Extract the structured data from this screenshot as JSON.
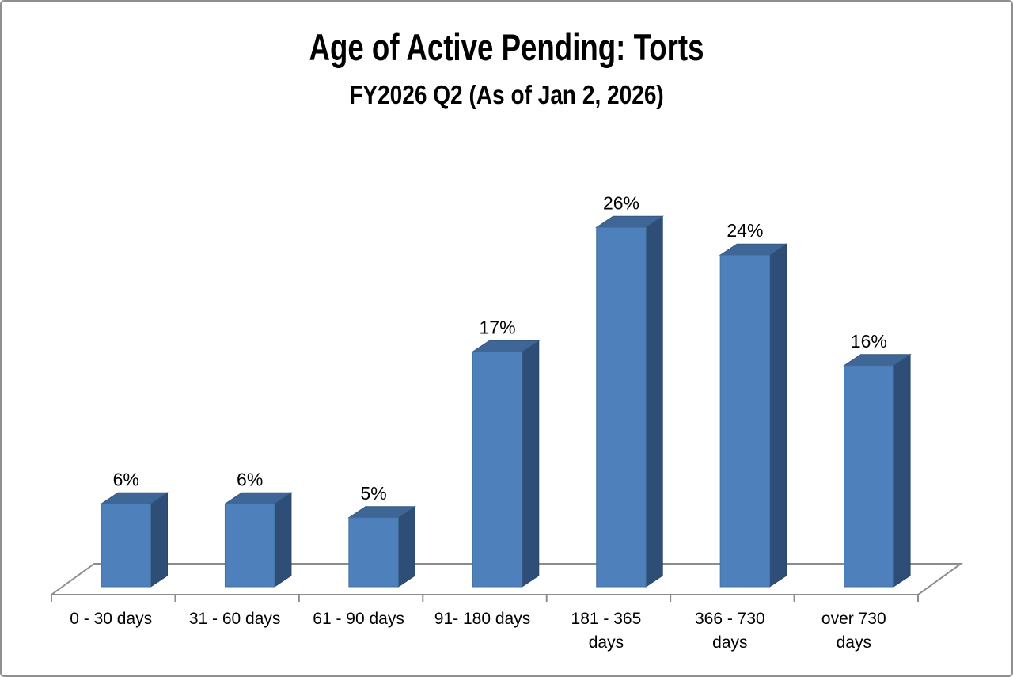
{
  "frame": {
    "title": "Age of Active Pending: Torts",
    "subtitle": "FY2026 Q2 (As of Jan 2, 2026)"
  },
  "chart_data": {
    "type": "bar",
    "effect": "3d-column",
    "title": "Age of Active Pending: Torts",
    "subtitle": "FY2026 Q2 (As of Jan 2, 2026)",
    "categories": [
      "0 - 30 days",
      "31 - 60 days",
      "61 - 90 days",
      "91- 180 days",
      "181 - 365 days",
      "366 - 730 days",
      "over 730 days"
    ],
    "category_label_lines": [
      [
        "0 - 30 days"
      ],
      [
        "31 - 60 days"
      ],
      [
        "61 - 90 days"
      ],
      [
        "91- 180 days"
      ],
      [
        "181 - 365",
        "days"
      ],
      [
        "366 - 730",
        "days"
      ],
      [
        "over 730",
        "days"
      ]
    ],
    "values": [
      6,
      6,
      5,
      17,
      26,
      24,
      16
    ],
    "data_labels": [
      "6%",
      "6%",
      "5%",
      "17%",
      "26%",
      "24%",
      "16%"
    ],
    "unit": "%",
    "value_axis_visible": false,
    "gridlines": "none",
    "legend": "none",
    "colors": {
      "bar_front": "#4E80BC",
      "bar_front_edge": "#44719E",
      "bar_top": "#3E6697",
      "bar_top_edge": "#35587F",
      "bar_side": "#2E4E78",
      "bar_side_edge": "#2A4668",
      "floor_line": "#8C8C8C",
      "text": "#000000",
      "background": "#FFFFFF",
      "frame_border": "#8F8F8F"
    }
  }
}
